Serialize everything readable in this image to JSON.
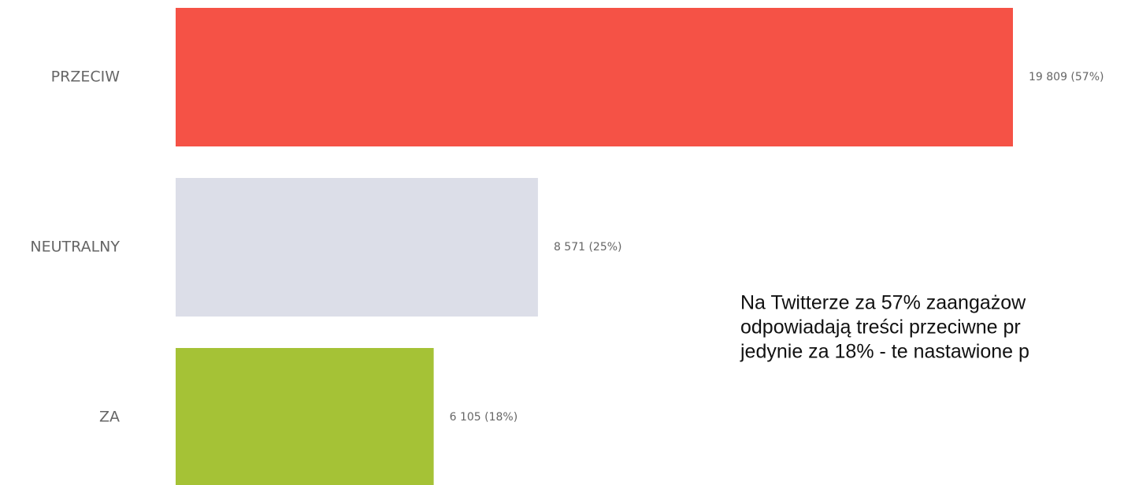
{
  "chart_data": {
    "type": "hbar",
    "categories": [
      "PRZECIW",
      "NEUTRALNY",
      "ZA"
    ],
    "values": [
      19809,
      8571,
      6105
    ],
    "value_labels": [
      "19 809 (57%)",
      "8 571 (25%)",
      "6 105 (18%)"
    ],
    "colors": [
      "#f55246",
      "#dcdee8",
      "#a5c236"
    ],
    "annotation": [
      "Na Twitterze za 57% zaangażow",
      "odpowiadają treści przeciwne pr",
      "jedynie za 18% - te nastawione p"
    ]
  }
}
